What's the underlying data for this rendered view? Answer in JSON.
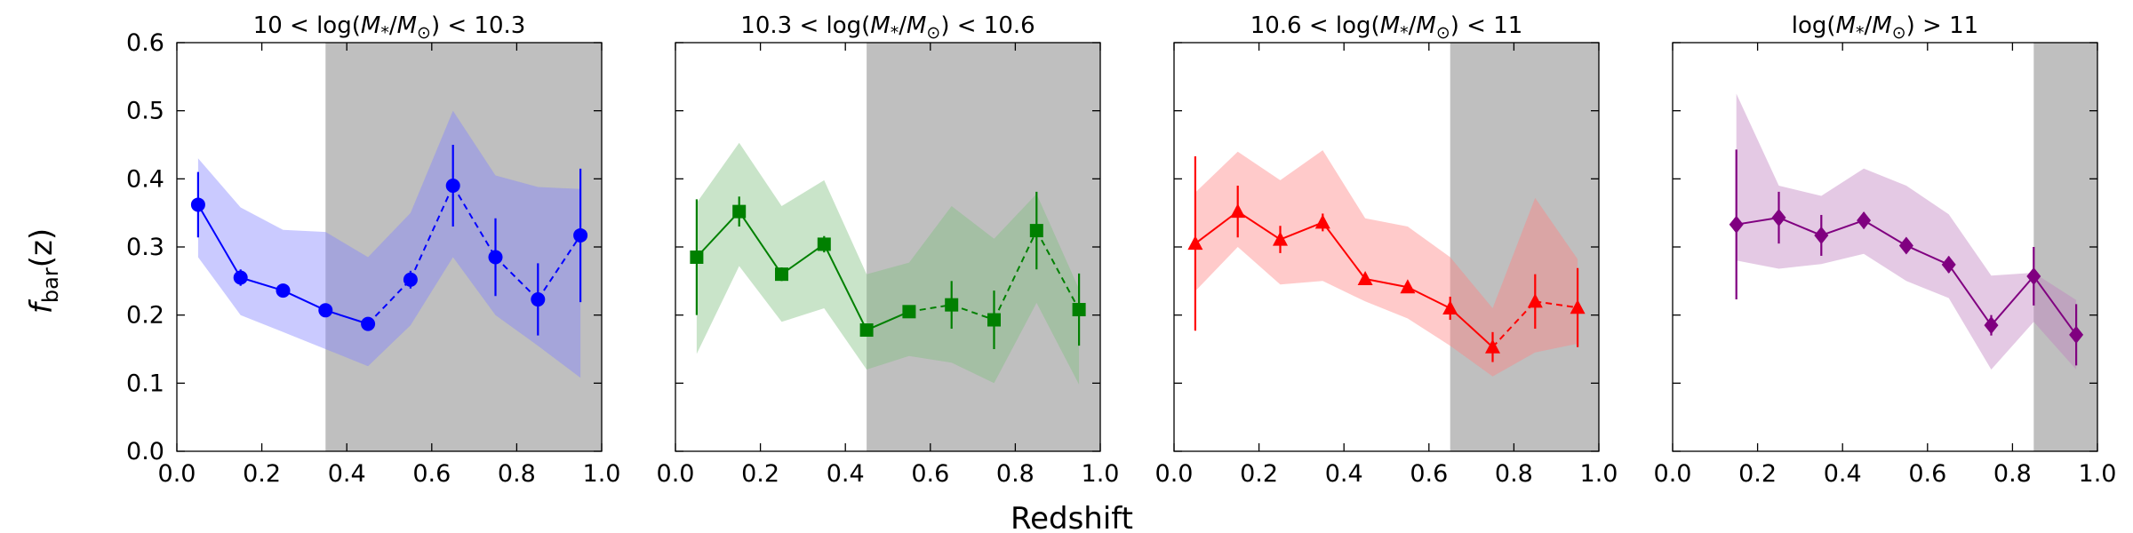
{
  "figure": {
    "xlabel": "Redshift",
    "ylabel_main": "f",
    "ylabel_sub": "bar",
    "ylabel_tail": "(z)",
    "xlim": [
      0.0,
      1.0
    ],
    "ylim": [
      0.0,
      0.6
    ],
    "xticks": [
      "0.0",
      "0.2",
      "0.4",
      "0.6",
      "0.8",
      "1.0"
    ],
    "yticks": [
      "0.0",
      "0.1",
      "0.2",
      "0.3",
      "0.4",
      "0.5",
      "0.6"
    ]
  },
  "chart_data": [
    {
      "type": "line",
      "title": "10 < log(M*/M⊙) < 10.3",
      "title_parts": {
        "pre": "10 < log(",
        "m": "M",
        "star": "*",
        "mid": "/",
        "msun": "M",
        "sun": "⊙",
        "post": ") < 10.3"
      },
      "color": "#0000ff",
      "fill_color": "#8080ff",
      "marker": "circle",
      "shaded_from": 0.35,
      "x": [
        0.05,
        0.15,
        0.25,
        0.35,
        0.45,
        0.55,
        0.65,
        0.75,
        0.85,
        0.95
      ],
      "y": [
        0.362,
        0.255,
        0.236,
        0.207,
        0.187,
        0.252,
        0.39,
        0.285,
        0.223,
        0.317
      ],
      "err": [
        0.048,
        0.012,
        0.007,
        0.008,
        0.006,
        0.013,
        0.06,
        0.057,
        0.053,
        0.098
      ],
      "band_lower": [
        0.285,
        0.2,
        0.175,
        0.15,
        0.125,
        0.185,
        0.285,
        0.2,
        0.155,
        0.108
      ],
      "band_upper": [
        0.43,
        0.358,
        0.325,
        0.322,
        0.285,
        0.35,
        0.5,
        0.405,
        0.388,
        0.385
      ]
    },
    {
      "type": "line",
      "title": "10.3 < log(M*/M⊙) < 10.6",
      "title_parts": {
        "pre": "10.3 < log(",
        "m": "M",
        "star": "*",
        "mid": "/",
        "msun": "M",
        "sun": "⊙",
        "post": ") < 10.6"
      },
      "color": "#008000",
      "fill_color": "#7fbf7f",
      "marker": "square",
      "shaded_from": 0.45,
      "x": [
        0.05,
        0.15,
        0.25,
        0.35,
        0.45,
        0.55,
        0.65,
        0.75,
        0.85,
        0.95
      ],
      "y": [
        0.285,
        0.352,
        0.26,
        0.304,
        0.178,
        0.205,
        0.215,
        0.193,
        0.324,
        0.208
      ],
      "err": [
        0.085,
        0.022,
        0.01,
        0.012,
        0.008,
        0.008,
        0.035,
        0.043,
        0.057,
        0.053
      ],
      "band_lower": [
        0.143,
        0.272,
        0.19,
        0.21,
        0.12,
        0.14,
        0.13,
        0.1,
        0.218,
        0.098
      ],
      "band_upper": [
        0.365,
        0.453,
        0.36,
        0.398,
        0.26,
        0.277,
        0.36,
        0.312,
        0.378,
        0.238
      ]
    },
    {
      "type": "line",
      "title": "10.6 < log(M*/M⊙) < 11",
      "title_parts": {
        "pre": "10.6 < log(",
        "m": "M",
        "star": "*",
        "mid": "/",
        "msun": "M",
        "sun": "⊙",
        "post": ") < 11"
      },
      "color": "#ff0000",
      "fill_color": "#ff8080",
      "marker": "triangle",
      "shaded_from": 0.65,
      "x": [
        0.05,
        0.15,
        0.25,
        0.35,
        0.45,
        0.55,
        0.65,
        0.75,
        0.85,
        0.95
      ],
      "y": [
        0.305,
        0.352,
        0.311,
        0.336,
        0.253,
        0.241,
        0.21,
        0.153,
        0.22,
        0.211
      ],
      "err": [
        0.128,
        0.038,
        0.02,
        0.013,
        0.006,
        0.006,
        0.017,
        0.022,
        0.04,
        0.058
      ],
      "band_lower": [
        0.235,
        0.3,
        0.245,
        0.25,
        0.22,
        0.195,
        0.155,
        0.11,
        0.145,
        0.158
      ],
      "band_upper": [
        0.38,
        0.44,
        0.398,
        0.442,
        0.342,
        0.33,
        0.285,
        0.21,
        0.372,
        0.282
      ]
    },
    {
      "type": "line",
      "title": "log(M*/M⊙) > 11",
      "title_parts": {
        "pre": "log(",
        "m": "M",
        "star": "*",
        "mid": "/",
        "msun": "M",
        "sun": "⊙",
        "post": ") > 11"
      },
      "color": "#800080",
      "fill_color": "#bf7fbf",
      "marker": "diamond",
      "shaded_from": 0.85,
      "x": [
        0.15,
        0.25,
        0.35,
        0.45,
        0.55,
        0.65,
        0.75,
        0.85,
        0.95
      ],
      "y": [
        0.333,
        0.343,
        0.317,
        0.339,
        0.302,
        0.274,
        0.185,
        0.257,
        0.171
      ],
      "err": [
        0.11,
        0.038,
        0.03,
        0.012,
        0.008,
        0.012,
        0.015,
        0.043,
        0.045
      ],
      "band_lower": [
        0.28,
        0.268,
        0.275,
        0.29,
        0.25,
        0.225,
        0.12,
        0.19,
        0.12
      ],
      "band_upper": [
        0.525,
        0.39,
        0.375,
        0.415,
        0.39,
        0.348,
        0.258,
        0.262,
        0.222
      ]
    }
  ]
}
